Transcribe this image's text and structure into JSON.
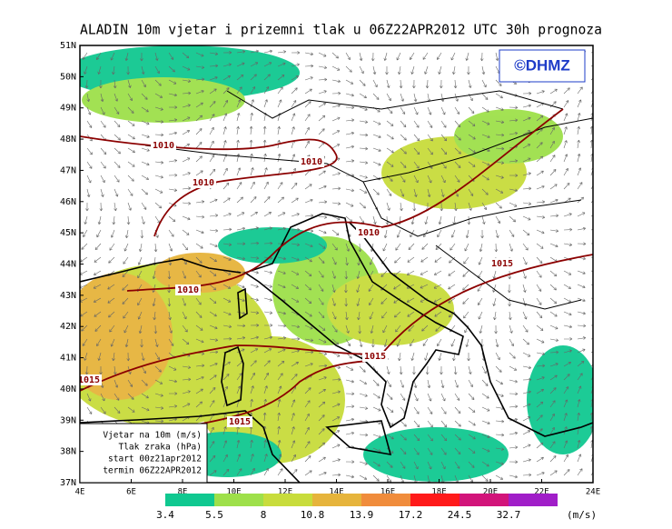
{
  "header": {
    "title": "ALADIN 10m vjetar i prizemni tlak u 06Z22APR2012 UTC 30h prognoza"
  },
  "logo": "©DHMZ",
  "lat_labels": [
    "51N",
    "50N",
    "49N",
    "48N",
    "47N",
    "46N",
    "45N",
    "44N",
    "43N",
    "42N",
    "41N",
    "40N",
    "39N",
    "38N",
    "37N"
  ],
  "lon_labels": [
    "4E",
    "6E",
    "8E",
    "10E",
    "12E",
    "14E",
    "16E",
    "18E",
    "20E",
    "22E",
    "24E"
  ],
  "isobar_labels": [
    "1010",
    "1010",
    "1010",
    "1010",
    "1015",
    "1010",
    "1015",
    "1015",
    "1015"
  ],
  "info_box": [
    "Vjetar na 10m (m/s)",
    "Tlak zraka (hPa)",
    "start 00z21apr2012",
    "termin 06Z22APR2012"
  ],
  "colorbar": {
    "values": [
      3.4,
      5.5,
      8,
      10.8,
      13.9,
      17.2,
      24.5,
      32.7
    ],
    "colors": [
      "#10c890",
      "#9ee04a",
      "#c8dc3c",
      "#e6b43c",
      "#f08c3c",
      "#ff1a1a",
      "#d2147a",
      "#a01ec8"
    ],
    "unit": "(m/s)"
  }
}
